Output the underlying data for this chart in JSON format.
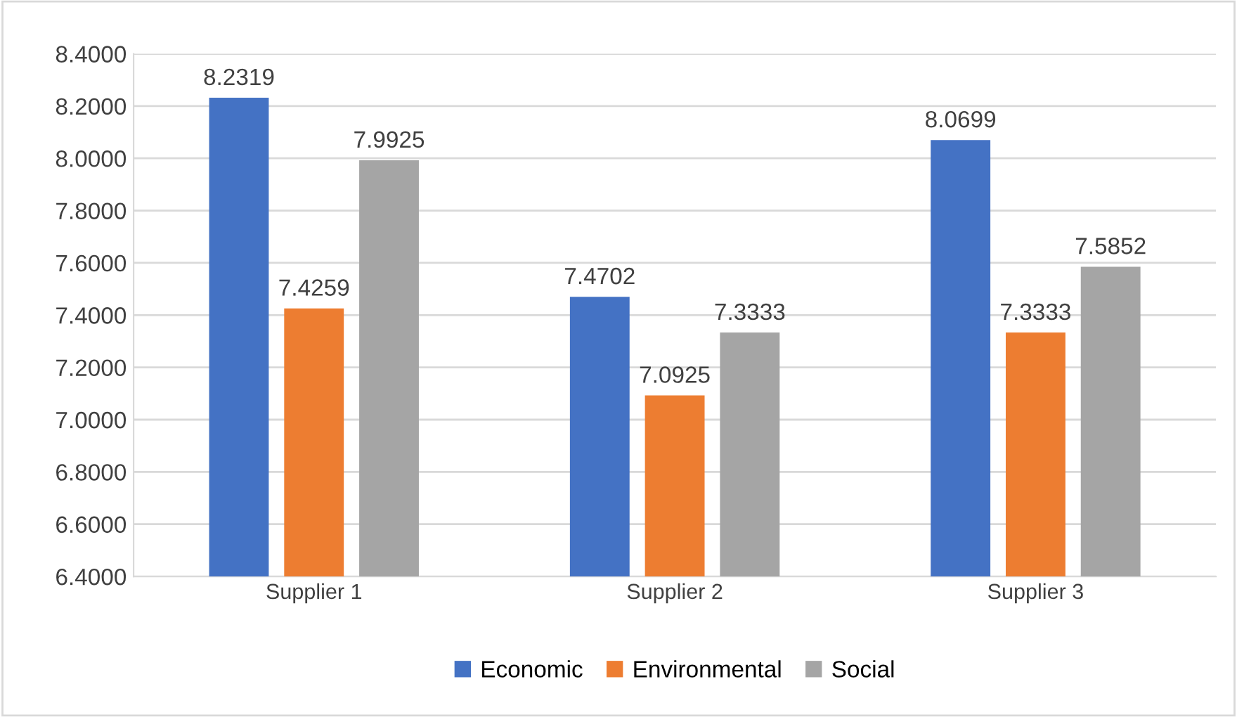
{
  "chart_data": {
    "type": "bar",
    "categories": [
      "Supplier 1",
      "Supplier 2",
      "Supplier 3"
    ],
    "series": [
      {
        "name": "Economic",
        "color": "#4472c4",
        "values": [
          8.2319,
          7.4702,
          8.0699
        ]
      },
      {
        "name": "Environmental",
        "color": "#ed7d31",
        "values": [
          7.4259,
          7.0925,
          7.3333
        ]
      },
      {
        "name": "Social",
        "color": "#a5a5a5",
        "values": [
          7.9925,
          7.3333,
          7.5852
        ]
      }
    ],
    "ylim": [
      6.4,
      8.4
    ],
    "yticks": [
      {
        "value": 6.4,
        "label": "6.4000"
      },
      {
        "value": 6.6,
        "label": "6.6000"
      },
      {
        "value": 6.8,
        "label": "6.8000"
      },
      {
        "value": 7.0,
        "label": "7.0000"
      },
      {
        "value": 7.2,
        "label": "7.2000"
      },
      {
        "value": 7.4,
        "label": "7.4000"
      },
      {
        "value": 7.6,
        "label": "7.6000"
      },
      {
        "value": 7.8,
        "label": "7.8000"
      },
      {
        "value": 8.0,
        "label": "8.0000"
      },
      {
        "value": 8.2,
        "label": "8.2000"
      },
      {
        "value": 8.4,
        "label": "8.4000"
      }
    ],
    "grid": "y",
    "legend": "bottom",
    "data_labels": true
  }
}
